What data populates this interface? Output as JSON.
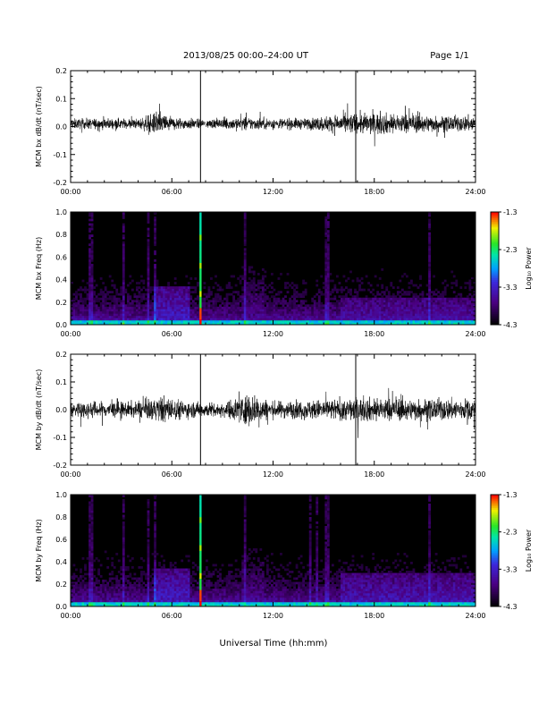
{
  "header": {
    "title": "2013/08/25  00:00–24:00 UT",
    "page": "Page 1/1"
  },
  "xaxis": {
    "label": "Universal Time (hh:mm)",
    "ticks": [
      "00:00",
      "06:00",
      "12:00",
      "18:00",
      "24:00"
    ],
    "range_hours": [
      0,
      24
    ]
  },
  "colorbar": {
    "label": "Log₁₀ Power",
    "ticks": [
      "-1.3",
      "-2.3",
      "-3.3",
      "-4.3"
    ],
    "range": [
      -4.3,
      -1.3
    ]
  },
  "chart_data": [
    {
      "type": "line",
      "ylabel": "MCM bx dB/dt (nT/sec)",
      "ylim": [
        -0.2,
        0.2
      ],
      "yticks": [
        "-0.2",
        "-0.1",
        "0.0",
        "0.1",
        "0.2"
      ],
      "baseline": 0.01,
      "spikes_hours": [
        7.7,
        16.9
      ],
      "activity_profile": [
        {
          "x": 0,
          "amp": 0.018
        },
        {
          "x": 2,
          "amp": 0.02
        },
        {
          "x": 4,
          "amp": 0.018
        },
        {
          "x": 5.3,
          "amp": 0.045
        },
        {
          "x": 6,
          "amp": 0.025
        },
        {
          "x": 8,
          "amp": 0.015
        },
        {
          "x": 10,
          "amp": 0.025
        },
        {
          "x": 12,
          "amp": 0.02
        },
        {
          "x": 14,
          "amp": 0.02
        },
        {
          "x": 16,
          "amp": 0.035
        },
        {
          "x": 18,
          "amp": 0.04
        },
        {
          "x": 20,
          "amp": 0.035
        },
        {
          "x": 22,
          "amp": 0.028
        },
        {
          "x": 24,
          "amp": 0.03
        }
      ]
    },
    {
      "type": "heatmap",
      "ylabel": "MCM bx Freq (Hz)",
      "ylim": [
        0.0,
        1.0
      ],
      "yticks": [
        "0.0",
        "0.2",
        "0.4",
        "0.6",
        "0.8",
        "1.0"
      ],
      "zlim": [
        -4.3,
        -1.3
      ],
      "bright_line_hours": [
        7.7
      ],
      "stripe_hours": [
        1.2,
        3.1,
        4.6,
        5.0,
        10.3,
        15.2,
        21.3
      ],
      "active_bands": [
        {
          "from": 5.0,
          "to": 7.0,
          "level": -3.3,
          "fmax": 0.35
        },
        {
          "from": 10.2,
          "to": 11.5,
          "level": -3.6,
          "fmax": 0.7
        },
        {
          "from": 16.0,
          "to": 24.0,
          "level": -3.5,
          "fmax": 0.25
        }
      ]
    },
    {
      "type": "line",
      "ylabel": "MCM by dB/dt (nT/sec)",
      "ylim": [
        -0.2,
        0.2
      ],
      "yticks": [
        "-0.2",
        "-0.1",
        "0.0",
        "0.1",
        "0.2"
      ],
      "baseline": 0.0,
      "spikes_hours": [
        7.7,
        16.9
      ],
      "activity_profile": [
        {
          "x": 0,
          "amp": 0.03
        },
        {
          "x": 2,
          "amp": 0.03
        },
        {
          "x": 4,
          "amp": 0.028
        },
        {
          "x": 5.5,
          "amp": 0.05
        },
        {
          "x": 7,
          "amp": 0.03
        },
        {
          "x": 9,
          "amp": 0.025
        },
        {
          "x": 10.5,
          "amp": 0.06
        },
        {
          "x": 12,
          "amp": 0.03
        },
        {
          "x": 14,
          "amp": 0.035
        },
        {
          "x": 16,
          "amp": 0.04
        },
        {
          "x": 18,
          "amp": 0.045
        },
        {
          "x": 20,
          "amp": 0.04
        },
        {
          "x": 22,
          "amp": 0.04
        },
        {
          "x": 24,
          "amp": 0.04
        }
      ]
    },
    {
      "type": "heatmap",
      "ylabel": "MCM by Freq (Hz)",
      "ylim": [
        0.0,
        1.0
      ],
      "yticks": [
        "0.0",
        "0.2",
        "0.4",
        "0.6",
        "0.8",
        "1.0"
      ],
      "zlim": [
        -4.3,
        -1.3
      ],
      "bright_line_hours": [
        7.7
      ],
      "stripe_hours": [
        1.2,
        3.1,
        4.6,
        5.0,
        10.3,
        14.2,
        14.6,
        15.2,
        21.3
      ],
      "active_bands": [
        {
          "from": 5.0,
          "to": 7.0,
          "level": -3.3,
          "fmax": 0.35
        },
        {
          "from": 10.2,
          "to": 11.5,
          "level": -3.6,
          "fmax": 0.7
        },
        {
          "from": 16.0,
          "to": 24.0,
          "level": -3.4,
          "fmax": 0.3
        }
      ]
    }
  ]
}
